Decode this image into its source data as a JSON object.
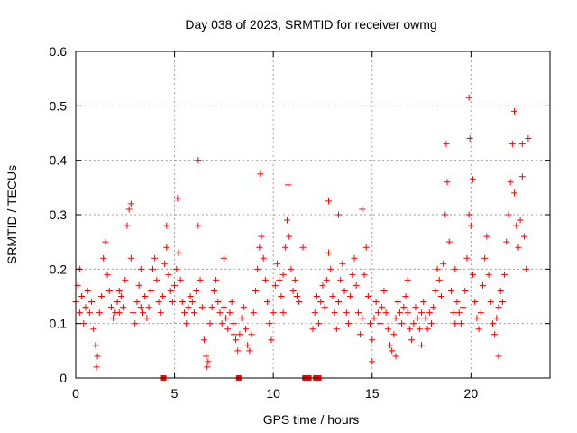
{
  "chart_data": {
    "type": "scatter",
    "title": "Day 038 of 2023, SRMTID for receiver owmg",
    "xlabel": "GPS time / hours",
    "ylabel": "SRMTID / TECUs",
    "xlim": [
      0,
      24
    ],
    "ylim": [
      0,
      0.6
    ],
    "xticks": [
      0,
      5,
      10,
      15,
      20
    ],
    "yticks": [
      0,
      0.1,
      0.2,
      0.3,
      0.4,
      0.5,
      0.6
    ],
    "ytick_labels": [
      "0",
      "0.1",
      "0.2",
      "0.3",
      "0.4",
      "0.5",
      "0.6"
    ],
    "grid": true,
    "marker": "+",
    "series": [
      {
        "name": "SRMTID",
        "color": "#ff0000",
        "points": [
          [
            0.0,
            0.14
          ],
          [
            0.1,
            0.17
          ],
          [
            0.2,
            0.12
          ],
          [
            0.3,
            0.15
          ],
          [
            0.4,
            0.1
          ],
          [
            0.5,
            0.13
          ],
          [
            0.6,
            0.16
          ],
          [
            0.7,
            0.12
          ],
          [
            0.8,
            0.14
          ],
          [
            0.9,
            0.09
          ],
          [
            1.0,
            0.06
          ],
          [
            1.1,
            0.04
          ],
          [
            1.2,
            0.12
          ],
          [
            1.3,
            0.15
          ],
          [
            1.4,
            0.22
          ],
          [
            1.5,
            0.25
          ],
          [
            1.6,
            0.19
          ],
          [
            1.7,
            0.16
          ],
          [
            1.8,
            0.13
          ],
          [
            1.9,
            0.11
          ],
          [
            2.0,
            0.12
          ],
          [
            2.1,
            0.14
          ],
          [
            2.2,
            0.12
          ],
          [
            2.3,
            0.15
          ],
          [
            2.4,
            0.13
          ],
          [
            2.5,
            0.18
          ],
          [
            2.6,
            0.28
          ],
          [
            2.7,
            0.31
          ],
          [
            2.8,
            0.22
          ],
          [
            2.9,
            0.12
          ],
          [
            3.0,
            0.1
          ],
          [
            3.1,
            0.14
          ],
          [
            3.2,
            0.17
          ],
          [
            3.3,
            0.13
          ],
          [
            3.4,
            0.12
          ],
          [
            3.5,
            0.15
          ],
          [
            3.6,
            0.11
          ],
          [
            3.7,
            0.13
          ],
          [
            3.8,
            0.16
          ],
          [
            3.9,
            0.2
          ],
          [
            4.0,
            0.22
          ],
          [
            4.1,
            0.18
          ],
          [
            4.2,
            0.14
          ],
          [
            4.3,
            0.12
          ],
          [
            4.4,
            0.15
          ],
          [
            4.5,
            0.21
          ],
          [
            4.6,
            0.24
          ],
          [
            4.7,
            0.19
          ],
          [
            4.8,
            0.16
          ],
          [
            4.9,
            0.14
          ],
          [
            5.0,
            0.17
          ],
          [
            5.1,
            0.2
          ],
          [
            5.2,
            0.23
          ],
          [
            5.3,
            0.18
          ],
          [
            5.4,
            0.14
          ],
          [
            5.5,
            0.12
          ],
          [
            5.6,
            0.1
          ],
          [
            5.7,
            0.13
          ],
          [
            5.8,
            0.15
          ],
          [
            5.9,
            0.14
          ],
          [
            6.0,
            0.12
          ],
          [
            6.1,
            0.16
          ],
          [
            6.2,
            0.28
          ],
          [
            6.3,
            0.18
          ],
          [
            6.4,
            0.13
          ],
          [
            6.5,
            0.07
          ],
          [
            6.6,
            0.04
          ],
          [
            6.7,
            0.03
          ],
          [
            6.8,
            0.1
          ],
          [
            6.9,
            0.13
          ],
          [
            7.0,
            0.16
          ],
          [
            7.1,
            0.18
          ],
          [
            7.2,
            0.14
          ],
          [
            7.3,
            0.12
          ],
          [
            7.4,
            0.1
          ],
          [
            7.5,
            0.13
          ],
          [
            7.6,
            0.11
          ],
          [
            7.7,
            0.09
          ],
          [
            7.8,
            0.12
          ],
          [
            7.9,
            0.14
          ],
          [
            8.0,
            0.1
          ],
          [
            8.1,
            0.07
          ],
          [
            8.2,
            0.05
          ],
          [
            8.3,
            0.08
          ],
          [
            8.4,
            0.11
          ],
          [
            8.5,
            0.13
          ],
          [
            8.6,
            0.09
          ],
          [
            8.7,
            0.06
          ],
          [
            8.8,
            0.05
          ],
          [
            8.9,
            0.08
          ],
          [
            9.0,
            0.12
          ],
          [
            9.1,
            0.16
          ],
          [
            9.2,
            0.2
          ],
          [
            9.3,
            0.24
          ],
          [
            9.4,
            0.26
          ],
          [
            9.5,
            0.22
          ],
          [
            9.6,
            0.18
          ],
          [
            9.7,
            0.14
          ],
          [
            9.8,
            0.1
          ],
          [
            9.9,
            0.07
          ],
          [
            10.0,
            0.12
          ],
          [
            10.1,
            0.17
          ],
          [
            10.2,
            0.21
          ],
          [
            10.3,
            0.18
          ],
          [
            10.4,
            0.15
          ],
          [
            10.5,
            0.19
          ],
          [
            10.6,
            0.24
          ],
          [
            10.7,
            0.29
          ],
          [
            10.8,
            0.26
          ],
          [
            10.9,
            0.2
          ],
          [
            11.0,
            0.16
          ],
          [
            11.1,
            0.18
          ],
          [
            11.2,
            0.15
          ],
          [
            11.3,
            0.14
          ],
          [
            12.0,
            0.09
          ],
          [
            12.1,
            0.12
          ],
          [
            12.2,
            0.15
          ],
          [
            12.3,
            0.1
          ],
          [
            12.4,
            0.14
          ],
          [
            12.5,
            0.17
          ],
          [
            12.6,
            0.13
          ],
          [
            12.7,
            0.18
          ],
          [
            12.8,
            0.23
          ],
          [
            12.9,
            0.2
          ],
          [
            13.0,
            0.15
          ],
          [
            13.1,
            0.12
          ],
          [
            13.2,
            0.09
          ],
          [
            13.3,
            0.14
          ],
          [
            13.4,
            0.18
          ],
          [
            13.5,
            0.21
          ],
          [
            13.6,
            0.16
          ],
          [
            13.7,
            0.12
          ],
          [
            13.8,
            0.1
          ],
          [
            13.9,
            0.15
          ],
          [
            14.0,
            0.19
          ],
          [
            14.1,
            0.22
          ],
          [
            14.2,
            0.17
          ],
          [
            14.3,
            0.12
          ],
          [
            14.4,
            0.08
          ],
          [
            14.5,
            0.11
          ],
          [
            14.6,
            0.19
          ],
          [
            14.7,
            0.24
          ],
          [
            14.8,
            0.15
          ],
          [
            14.9,
            0.1
          ],
          [
            15.0,
            0.07
          ],
          [
            15.1,
            0.11
          ],
          [
            15.2,
            0.14
          ],
          [
            15.3,
            0.12
          ],
          [
            15.4,
            0.1
          ],
          [
            15.5,
            0.13
          ],
          [
            15.6,
            0.16
          ],
          [
            15.7,
            0.12
          ],
          [
            15.8,
            0.09
          ],
          [
            15.9,
            0.06
          ],
          [
            16.0,
            0.05
          ],
          [
            16.1,
            0.08
          ],
          [
            16.2,
            0.11
          ],
          [
            16.3,
            0.14
          ],
          [
            16.4,
            0.12
          ],
          [
            16.5,
            0.1
          ],
          [
            16.6,
            0.13
          ],
          [
            16.7,
            0.15
          ],
          [
            16.8,
            0.12
          ],
          [
            16.9,
            0.09
          ],
          [
            17.0,
            0.07
          ],
          [
            17.1,
            0.1
          ],
          [
            17.2,
            0.13
          ],
          [
            17.3,
            0.11
          ],
          [
            17.4,
            0.09
          ],
          [
            17.5,
            0.12
          ],
          [
            17.6,
            0.14
          ],
          [
            17.7,
            0.11
          ],
          [
            17.8,
            0.09
          ],
          [
            17.9,
            0.12
          ],
          [
            18.0,
            0.1
          ],
          [
            18.1,
            0.13
          ],
          [
            18.2,
            0.16
          ],
          [
            18.3,
            0.2
          ],
          [
            18.4,
            0.18
          ],
          [
            18.5,
            0.15
          ],
          [
            18.6,
            0.21
          ],
          [
            18.7,
            0.3
          ],
          [
            18.8,
            0.36
          ],
          [
            18.9,
            0.25
          ],
          [
            19.0,
            0.16
          ],
          [
            19.1,
            0.12
          ],
          [
            19.2,
            0.1
          ],
          [
            19.3,
            0.14
          ],
          [
            19.4,
            0.12
          ],
          [
            19.5,
            0.1
          ],
          [
            19.6,
            0.13
          ],
          [
            19.7,
            0.16
          ],
          [
            19.8,
            0.22
          ],
          [
            19.9,
            0.3
          ],
          [
            20.0,
            0.28
          ],
          [
            20.1,
            0.19
          ],
          [
            20.2,
            0.14
          ],
          [
            20.3,
            0.11
          ],
          [
            20.4,
            0.09
          ],
          [
            20.5,
            0.12
          ],
          [
            20.6,
            0.17
          ],
          [
            20.7,
            0.22
          ],
          [
            20.8,
            0.26
          ],
          [
            20.9,
            0.19
          ],
          [
            21.0,
            0.14
          ],
          [
            21.1,
            0.1
          ],
          [
            21.2,
            0.08
          ],
          [
            21.3,
            0.11
          ],
          [
            21.4,
            0.13
          ],
          [
            21.5,
            0.16
          ],
          [
            21.6,
            0.14
          ],
          [
            21.7,
            0.19
          ],
          [
            21.8,
            0.25
          ],
          [
            21.9,
            0.3
          ],
          [
            22.0,
            0.36
          ],
          [
            22.1,
            0.43
          ],
          [
            22.2,
            0.34
          ],
          [
            22.3,
            0.28
          ],
          [
            22.4,
            0.24
          ],
          [
            22.5,
            0.29
          ],
          [
            22.6,
            0.37
          ],
          [
            22.7,
            0.26
          ],
          [
            22.8,
            0.2
          ],
          [
            1.05,
            0.02
          ],
          [
            2.8,
            0.32
          ],
          [
            5.15,
            0.33
          ],
          [
            6.2,
            0.4
          ],
          [
            6.65,
            0.02
          ],
          [
            9.35,
            0.375
          ],
          [
            10.75,
            0.355
          ],
          [
            12.8,
            0.325
          ],
          [
            14.5,
            0.31
          ],
          [
            15.0,
            0.03
          ],
          [
            16.2,
            0.04
          ],
          [
            18.75,
            0.43
          ],
          [
            19.9,
            0.515
          ],
          [
            19.95,
            0.44
          ],
          [
            20.1,
            0.365
          ],
          [
            22.2,
            0.49
          ],
          [
            22.6,
            0.43
          ],
          [
            22.9,
            0.44
          ],
          [
            13.3,
            0.3
          ],
          [
            0.2,
            0.2
          ],
          [
            4.6,
            0.28
          ],
          [
            7.5,
            0.22
          ],
          [
            8.0,
            0.08
          ],
          [
            11.5,
            0.24
          ],
          [
            17.5,
            0.06
          ],
          [
            21.4,
            0.04
          ],
          [
            2.2,
            0.16
          ],
          [
            3.3,
            0.2
          ],
          [
            10.5,
            0.12
          ],
          [
            16.8,
            0.18
          ],
          [
            19.2,
            0.2
          ]
        ]
      }
    ],
    "zero_markers": {
      "style": "square",
      "x": [
        4.45,
        8.25,
        11.6,
        11.8,
        12.15,
        12.3
      ]
    }
  }
}
